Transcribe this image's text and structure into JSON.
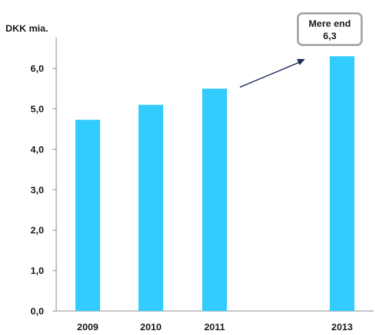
{
  "chart_data": {
    "type": "bar",
    "ylabel": "DKK mia.",
    "categories": [
      "2009",
      "2010",
      "2011",
      "2013"
    ],
    "values": [
      4.73,
      5.1,
      5.5,
      6.3
    ],
    "ylim": [
      0,
      6.3
    ],
    "yticks": [
      "0,0",
      "1,0",
      "2,0",
      "3,0",
      "4,0",
      "5,0",
      "6,0"
    ],
    "grid": false,
    "bar_color": "#33ccff",
    "annotation": {
      "line1": "Mere end",
      "line2": "6,3",
      "arrow_color": "#1f2d5c",
      "border_color": "#a6a6a6"
    }
  }
}
